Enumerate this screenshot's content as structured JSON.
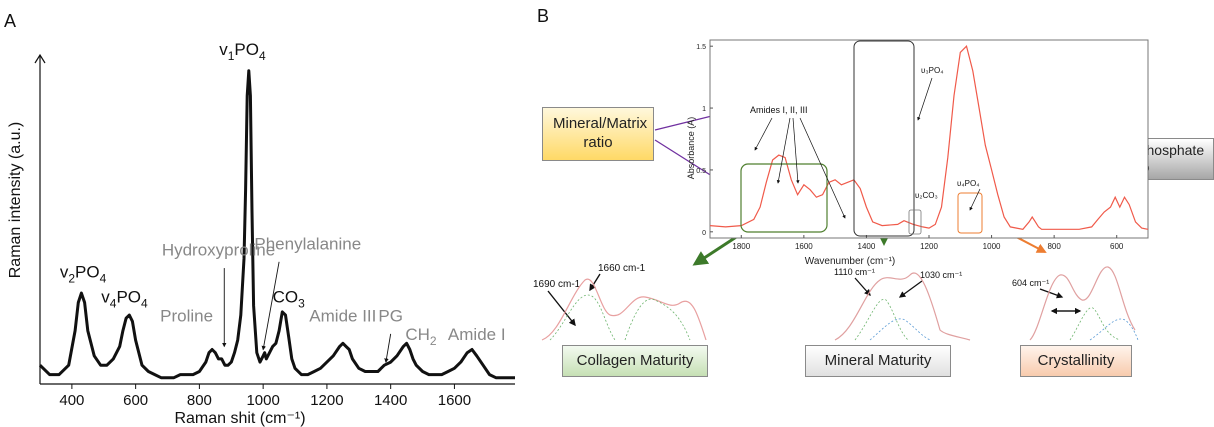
{
  "panel_a": {
    "letter": "A",
    "chart_data": {
      "type": "line",
      "xlabel": "Raman shit (cm⁻¹)",
      "ylabel": "Raman intensity (a.u.)",
      "xlim": [
        300,
        1790
      ],
      "ylim": [
        0,
        1.05
      ],
      "xticks": [
        400,
        600,
        800,
        1000,
        1200,
        1400,
        1600
      ],
      "series": [
        {
          "x": [
            300,
            330,
            360,
            390,
            410,
            420,
            430,
            440,
            450,
            470,
            490,
            510,
            530,
            550,
            560,
            570,
            580,
            590,
            600,
            620,
            640,
            660,
            680,
            700,
            720,
            740,
            760,
            780,
            800,
            820,
            830,
            840,
            850,
            860,
            870,
            880,
            890,
            900,
            910,
            920,
            930,
            940,
            945,
            950,
            955,
            960,
            965,
            970,
            980,
            990,
            1000,
            1005,
            1010,
            1020,
            1030,
            1040,
            1050,
            1060,
            1070,
            1080,
            1090,
            1100,
            1120,
            1140,
            1160,
            1180,
            1200,
            1220,
            1240,
            1250,
            1260,
            1270,
            1280,
            1300,
            1320,
            1340,
            1360,
            1380,
            1400,
            1420,
            1440,
            1450,
            1460,
            1470,
            1480,
            1500,
            1520,
            1540,
            1560,
            1580,
            1600,
            1620,
            1640,
            1655,
            1670,
            1690,
            1710,
            1730,
            1750,
            1790
          ],
          "values": [
            0.06,
            0.03,
            0.03,
            0.06,
            0.17,
            0.26,
            0.29,
            0.26,
            0.17,
            0.09,
            0.06,
            0.06,
            0.08,
            0.12,
            0.17,
            0.21,
            0.22,
            0.2,
            0.14,
            0.06,
            0.04,
            0.03,
            0.02,
            0.02,
            0.02,
            0.03,
            0.03,
            0.03,
            0.04,
            0.07,
            0.1,
            0.11,
            0.1,
            0.08,
            0.08,
            0.06,
            0.06,
            0.07,
            0.1,
            0.14,
            0.22,
            0.4,
            0.62,
            0.92,
            1.0,
            0.92,
            0.55,
            0.25,
            0.1,
            0.07,
            0.09,
            0.1,
            0.08,
            0.1,
            0.12,
            0.13,
            0.17,
            0.23,
            0.22,
            0.15,
            0.08,
            0.05,
            0.03,
            0.03,
            0.04,
            0.05,
            0.07,
            0.09,
            0.12,
            0.13,
            0.12,
            0.11,
            0.08,
            0.05,
            0.04,
            0.04,
            0.04,
            0.06,
            0.07,
            0.09,
            0.12,
            0.13,
            0.11,
            0.08,
            0.06,
            0.04,
            0.03,
            0.03,
            0.03,
            0.04,
            0.05,
            0.07,
            0.1,
            0.11,
            0.09,
            0.06,
            0.03,
            0.02,
            0.02,
            0.02
          ]
        }
      ],
      "annotations": [
        {
          "base": "v",
          "sub1": "2",
          "mid": "PO",
          "sub2": "4",
          "x": 435,
          "y": 0.34,
          "color": "#111111"
        },
        {
          "base": "v",
          "sub1": "4",
          "mid": "PO",
          "sub2": "4",
          "x": 565,
          "y": 0.26,
          "color": "#111111"
        },
        {
          "base": "v",
          "sub1": "1",
          "mid": "PO",
          "sub2": "4",
          "x": 935,
          "y": 1.05,
          "color": "#111111"
        },
        {
          "base": "Hydroxyproline",
          "x": 860,
          "y": 0.41,
          "color": "#888888"
        },
        {
          "base": "Proline",
          "x": 760,
          "y": 0.2,
          "color": "#888888"
        },
        {
          "base": "Phenylalanine",
          "x": 1140,
          "y": 0.43,
          "color": "#888888"
        },
        {
          "base": "CO",
          "sub2": "3",
          "x": 1080,
          "y": 0.26,
          "color": "#111111"
        },
        {
          "base": "Amide III",
          "x": 1250,
          "y": 0.2,
          "color": "#888888"
        },
        {
          "base": "PG",
          "x": 1400,
          "y": 0.2,
          "color": "#888888"
        },
        {
          "base": "CH",
          "sub2": "2",
          "x": 1495,
          "y": 0.14,
          "color": "#888888"
        },
        {
          "base": "Amide I",
          "x": 1670,
          "y": 0.14,
          "color": "#888888"
        }
      ]
    }
  },
  "panel_b": {
    "letter": "B",
    "boxes": {
      "mineral_matrix": "Mineral/Matrix ratio",
      "carbonate_phosphate": "Carbonate/Phosphate ratio",
      "collagen_maturity": "Collagen Maturity",
      "mineral_maturity": "Mineral Maturity",
      "crystallinity": "Crystallinity"
    },
    "colors": {
      "collagen": "#d9ead3",
      "mineral": "#f2f2f2",
      "crystal": "#fce4d6",
      "mineral_matrix_box": "#ffe9a8",
      "carbonate_box": "#bdbdbd"
    },
    "inset_labels": {
      "amides": "Amides I, II, III",
      "v3po4": "υ₃PO₄",
      "v2co3": "υ₂CO₃",
      "v4po4": "υ₄PO₄",
      "peak_1690": "1690 cm-1",
      "peak_1660": "1660 cm-1",
      "peak_1110": "1110 cm⁻¹",
      "peak_1030": "1030 cm⁻¹",
      "peak_604": "604 cm⁻¹"
    },
    "chart_data": {
      "type": "line",
      "xlabel": "Wavenumber (cm⁻¹)",
      "ylabel": "Absorbance (A)",
      "xlim": [
        1900,
        500
      ],
      "ylim": [
        -0.05,
        1.55
      ],
      "xticks": [
        1800,
        1600,
        1400,
        1200,
        1000,
        800,
        600
      ],
      "yticks": [
        0,
        0.5,
        1,
        1.5
      ],
      "series": [
        {
          "x": [
            1900,
            1850,
            1800,
            1760,
            1740,
            1720,
            1700,
            1680,
            1660,
            1640,
            1620,
            1600,
            1580,
            1560,
            1540,
            1520,
            1500,
            1480,
            1460,
            1440,
            1420,
            1400,
            1380,
            1350,
            1300,
            1280,
            1250,
            1220,
            1200,
            1180,
            1160,
            1140,
            1120,
            1100,
            1080,
            1060,
            1040,
            1020,
            1000,
            980,
            960,
            940,
            920,
            900,
            880,
            870,
            860,
            850,
            840,
            800,
            760,
            720,
            680,
            660,
            640,
            620,
            605,
            590,
            575,
            560,
            540,
            520,
            500
          ],
          "values": [
            0.05,
            0.04,
            0.05,
            0.1,
            0.2,
            0.4,
            0.58,
            0.62,
            0.6,
            0.42,
            0.3,
            0.38,
            0.34,
            0.28,
            0.3,
            0.4,
            0.42,
            0.38,
            0.4,
            0.42,
            0.35,
            0.2,
            0.08,
            0.05,
            0.06,
            0.09,
            0.06,
            0.04,
            0.03,
            0.06,
            0.2,
            0.6,
            1.1,
            1.45,
            1.5,
            1.3,
            1.0,
            0.7,
            0.5,
            0.3,
            0.12,
            0.04,
            0.03,
            0.02,
            0.08,
            0.12,
            0.08,
            0.04,
            0.02,
            0.02,
            0.02,
            0.02,
            0.04,
            0.1,
            0.16,
            0.2,
            0.28,
            0.2,
            0.28,
            0.22,
            0.08,
            0.03,
            0.02
          ]
        }
      ]
    }
  }
}
